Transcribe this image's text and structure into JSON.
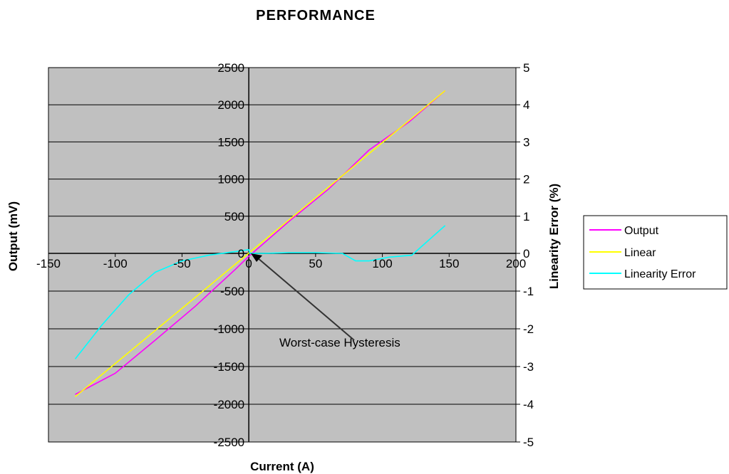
{
  "chart_data": {
    "type": "line",
    "title": "PERFORMANCE",
    "xlabel": "Current (A)",
    "ylabel": "Output (mV)",
    "y2label": "Linearity Error (%)",
    "xlim": [
      -150,
      200
    ],
    "ylim": [
      -2500,
      2500
    ],
    "y2lim": [
      -5,
      5
    ],
    "x_ticks": [
      "-150",
      "-100",
      "-50",
      "0",
      "50",
      "100",
      "150",
      "200"
    ],
    "y_ticks": [
      "2500",
      "2000",
      "1500",
      "1000",
      "500",
      "0",
      "-500",
      "-1000",
      "-1500",
      "-2000",
      "-2500"
    ],
    "y2_ticks": [
      "5",
      "4",
      "3",
      "2",
      "1",
      "0",
      "-1",
      "-2",
      "-3",
      "-4",
      "-5"
    ],
    "grid": "horizontal",
    "background": "#c0c0c0",
    "legend_position": "right",
    "series": [
      {
        "name": "Output",
        "color": "#ff00ff",
        "axis": "left",
        "x": [
          -130,
          -100,
          -70,
          -40,
          -10,
          0,
          30,
          60,
          90,
          120,
          147
        ],
        "y": [
          -1870,
          -1590,
          -1150,
          -700,
          -210,
          -40,
          430,
          870,
          1390,
          1770,
          2190
        ]
      },
      {
        "name": "Linear",
        "color": "#ffff00",
        "axis": "left",
        "x": [
          -130,
          147
        ],
        "y": [
          -1900,
          2190
        ]
      },
      {
        "name": "Linearity Error",
        "color": "#00ffff",
        "axis": "right",
        "x": [
          -130,
          -110,
          -90,
          -70,
          -50,
          -30,
          -10,
          0,
          1,
          10,
          30,
          50,
          70,
          80,
          90,
          105,
          122,
          147
        ],
        "y": [
          -2.8,
          -1.9,
          -1.1,
          -0.5,
          -0.2,
          -0.05,
          0.05,
          0.1,
          0.0,
          0.0,
          0.02,
          0.02,
          0.0,
          -0.2,
          -0.2,
          -0.1,
          -0.05,
          0.75
        ]
      }
    ],
    "annotations": [
      {
        "text": "Worst-case Hysteresis",
        "x": 3,
        "y": 0,
        "axis": "left"
      }
    ]
  }
}
